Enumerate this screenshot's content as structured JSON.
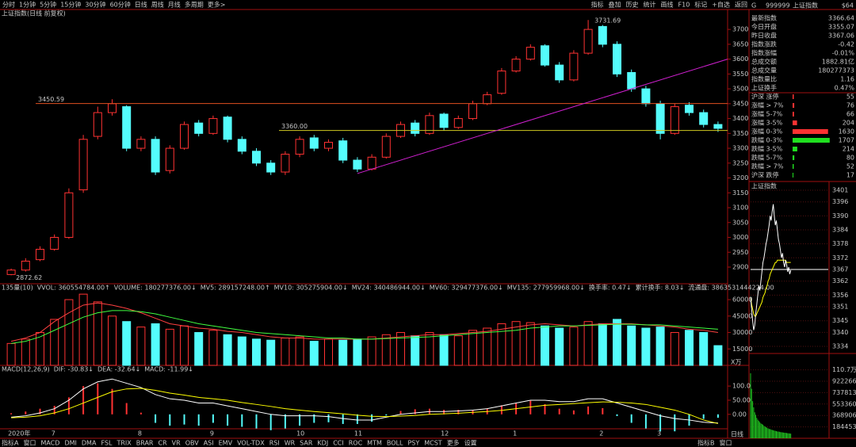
{
  "toolbar": {
    "periods": [
      "分时",
      "1分钟",
      "5分钟",
      "15分钟",
      "30分钟",
      "60分钟",
      "日线",
      "周线",
      "月线",
      "多周期",
      "更多>"
    ],
    "active": 6,
    "tools": [
      "指标",
      "叠加",
      "历史",
      "统计",
      "画线",
      "F10",
      "标记",
      "+自选",
      "返回"
    ]
  },
  "chart_data": [
    {
      "type": "candlestick",
      "title": "上证指数(日线 前复权)",
      "categories": [
        "2020年",
        null,
        null,
        "7",
        null,
        null,
        null,
        null,
        null,
        "8",
        null,
        null,
        null,
        null,
        "9",
        null,
        null,
        null,
        null,
        null,
        "10",
        null,
        null,
        null,
        "11",
        null,
        null,
        null,
        null,
        null,
        "12",
        null,
        null,
        null,
        null,
        "1",
        null,
        null,
        null,
        null,
        null,
        "2",
        null,
        null,
        null,
        "3",
        null,
        null,
        null,
        null
      ],
      "open": [
        2875,
        2890,
        2925,
        2960,
        3000,
        3160,
        3340,
        3420,
        3440,
        3300,
        3330,
        3225,
        3300,
        3385,
        3350,
        3405,
        3330,
        3290,
        3250,
        3220,
        3280,
        3335,
        3300,
        3325,
        3260,
        3230,
        3270,
        3340,
        3385,
        3350,
        3415,
        3370,
        3400,
        3450,
        3485,
        3560,
        3600,
        3645,
        3580,
        3530,
        3620,
        3710,
        3650,
        3555,
        3500,
        3450,
        3350,
        3445,
        3420,
        3380
      ],
      "high": [
        2895,
        2930,
        2970,
        3010,
        3165,
        3345,
        3440,
        3465,
        3445,
        3340,
        3340,
        3310,
        3390,
        3395,
        3410,
        3410,
        3340,
        3300,
        3260,
        3290,
        3340,
        3345,
        3330,
        3335,
        3270,
        3280,
        3350,
        3390,
        3395,
        3420,
        3420,
        3410,
        3460,
        3490,
        3570,
        3610,
        3650,
        3650,
        3590,
        3630,
        3731.69,
        3715,
        3660,
        3565,
        3510,
        3460,
        3450,
        3455,
        3430,
        3390
      ],
      "low": [
        2872.62,
        2885,
        2920,
        2955,
        2995,
        3150,
        3330,
        3410,
        3290,
        3290,
        3210,
        3215,
        3295,
        3340,
        3345,
        3320,
        3280,
        3240,
        3210,
        3210,
        3270,
        3290,
        3290,
        3250,
        3220,
        3225,
        3265,
        3335,
        3340,
        3345,
        3360,
        3365,
        3395,
        3445,
        3480,
        3555,
        3595,
        3575,
        3520,
        3525,
        3615,
        3640,
        3540,
        3490,
        3440,
        3330,
        3345,
        3410,
        3370,
        3355
      ],
      "close": [
        2890,
        2920,
        2960,
        3000,
        3150,
        3330,
        3420,
        3450,
        3300,
        3330,
        3220,
        3300,
        3380,
        3350,
        3400,
        3330,
        3290,
        3250,
        3220,
        3280,
        3330,
        3300,
        3320,
        3260,
        3230,
        3270,
        3340,
        3380,
        3350,
        3410,
        3370,
        3400,
        3450,
        3480,
        3560,
        3600,
        3640,
        3580,
        3530,
        3620,
        3700,
        3650,
        3550,
        3500,
        3450,
        3350,
        3440,
        3420,
        3380,
        3367
      ],
      "up_color": "#ff3232",
      "down_color": "#54fcfc",
      "ylim": [
        2844,
        3767
      ],
      "yticks": [
        2900,
        2950,
        3000,
        3050,
        3100,
        3150,
        3200,
        3250,
        3300,
        3350,
        3400,
        3450,
        3500,
        3550,
        3600,
        3650,
        3700
      ],
      "lines": [
        {
          "value": 3450.59,
          "color": "#e05020"
        },
        {
          "value": {
            "value": 3360,
            "label": "3360.00"
          },
          "color": "#d0c820"
        }
      ],
      "trend_line": {
        "values": [
          3215,
          3600
        ],
        "color": "#d020d0"
      },
      "period_label": "日线"
    },
    {
      "type": "bar",
      "legend": [
        {
          "text": "135量(10)",
          "color": "#c8c8c8"
        },
        {
          "text": "VVOL: 360554784.00↑",
          "color": "#ffffff"
        },
        {
          "text": "VOLUME: 180277376.00↓",
          "color": "#ffff00"
        },
        {
          "text": "MV5: 289157248.00↑",
          "color": "#ff4040"
        },
        {
          "text": "MV10: 305275904.00↓",
          "color": "#ffffff"
        },
        {
          "text": "MV24: 340486944.00↓",
          "color": "#40ff40"
        },
        {
          "text": "MV60: 329477376.00↓",
          "color": "#4060ff"
        },
        {
          "text": "MV135: 277959968.00↓",
          "color": "#ffffff"
        },
        {
          "text": "换手率: 0.47↓",
          "color": "#ffffff"
        },
        {
          "text": "累计换手: 8.03↓",
          "color": "#ffff00"
        },
        {
          "text": "流通盘: 3863531444224.00",
          "color": "#ff40ff"
        }
      ],
      "values": [
        20000,
        24000,
        30000,
        42000,
        60000,
        65000,
        58000,
        45000,
        40000,
        35000,
        38000,
        33000,
        36000,
        30000,
        32000,
        28000,
        26000,
        24000,
        23000,
        25000,
        26000,
        22000,
        24000,
        23000,
        24000,
        26000,
        28000,
        30000,
        27000,
        30000,
        28000,
        27000,
        32000,
        34000,
        38000,
        40000,
        39000,
        36000,
        34000,
        35000,
        40000,
        38000,
        42000,
        36000,
        34000,
        35000,
        30000,
        32000,
        30000,
        18028
      ],
      "series": [
        {
          "color": "#ff4040",
          "values": [
            22000,
            25000,
            30000,
            40000,
            48000,
            55000,
            57000,
            55000,
            52000,
            48000,
            43000,
            38000,
            36000,
            34000,
            33000,
            31000,
            30000,
            28000,
            26000,
            25000,
            25000,
            24000,
            24000,
            24000,
            24000,
            24000,
            25000,
            26000,
            27000,
            28000,
            28000,
            29000,
            30000,
            31000,
            33000,
            35000,
            37000,
            38000,
            37000,
            36000,
            37000,
            38000,
            38000,
            38000,
            37000,
            36000,
            35000,
            33000,
            32000,
            30000
          ]
        },
        {
          "color": "#40ff40",
          "values": [
            20000,
            22000,
            26000,
            32000,
            38000,
            44000,
            48000,
            50000,
            50000,
            49000,
            47000,
            44000,
            41000,
            38000,
            36000,
            34000,
            32000,
            30000,
            29000,
            28000,
            27000,
            26000,
            25000,
            25000,
            24000,
            24000,
            24500,
            25000,
            25500,
            26000,
            27000,
            28000,
            29000,
            30000,
            31000,
            32000,
            34000,
            35000,
            36000,
            36000,
            36500,
            37000,
            37500,
            37500,
            37000,
            37000,
            36000,
            35000,
            34000,
            33000
          ]
        }
      ],
      "ylim": [
        0,
        68000
      ],
      "yticks": [
        15000,
        30000,
        45000,
        60000
      ],
      "unit": "X万"
    },
    {
      "type": "macd",
      "legend": [
        {
          "text": "MACD(12,26,9)",
          "color": "#c8c8c8"
        },
        {
          "text": "DIF: -30.83↓",
          "color": "#ffffff"
        },
        {
          "text": "DEA: -32.64↓",
          "color": "#ffff00"
        },
        {
          "text": "MACD: -11.99↓",
          "color": "#ff40ff"
        }
      ],
      "values": [
        4,
        10,
        20,
        30,
        60,
        100,
        110,
        90,
        40,
        6,
        -30,
        -40,
        -36,
        -40,
        -30,
        -40,
        -44,
        -50,
        -56,
        -50,
        -40,
        -30,
        -28,
        -34,
        -34,
        -26,
        -4,
        12,
        18,
        20,
        16,
        16,
        16,
        20,
        32,
        40,
        48,
        36,
        20,
        14,
        28,
        22,
        -6,
        -30,
        -50,
        -60,
        -60,
        -40,
        -16,
        -11.99
      ],
      "series": [
        {
          "color": "#ffffff",
          "values": [
            -10,
            -5,
            5,
            20,
            50,
            90,
            115,
            125,
            110,
            95,
            70,
            55,
            50,
            40,
            40,
            30,
            20,
            10,
            0,
            -5,
            -5,
            -5,
            -8,
            -15,
            -20,
            -20,
            -10,
            0,
            5,
            10,
            10,
            12,
            15,
            20,
            30,
            40,
            50,
            50,
            45,
            45,
            55,
            55,
            40,
            25,
            10,
            -5,
            -15,
            -20,
            -28,
            -30.83
          ]
        },
        {
          "color": "#ffff00",
          "values": [
            -12,
            -10,
            -5,
            5,
            20,
            40,
            60,
            80,
            90,
            92,
            85,
            75,
            68,
            60,
            55,
            50,
            42,
            35,
            28,
            20,
            15,
            10,
            6,
            2,
            -3,
            -7,
            -8,
            -6,
            -4,
            0,
            2,
            4,
            7,
            10,
            14,
            20,
            26,
            32,
            35,
            38,
            41,
            44,
            43,
            40,
            35,
            25,
            15,
            0,
            -20,
            -32.64
          ]
        }
      ],
      "up_color": "#ff3232",
      "down_color": "#54fcfc",
      "ylim": [
        -51,
        148
      ],
      "yticks": [
        {
          "value": 0,
          "label": "0.00"
        },
        {
          "value": 50,
          "label": "50.00"
        },
        {
          "value": 100,
          "label": "100.0"
        }
      ]
    }
  ],
  "tabs": [
    "指标A",
    "窗口",
    "MACD",
    "DMI",
    "DMA",
    "FSL",
    "TRIX",
    "BRAR",
    "CR",
    "VR",
    "OBV",
    "ASI",
    "EMV",
    "VOL-TDX",
    "RSI",
    "WR",
    "SAR",
    "KDJ",
    "CCI",
    "ROC",
    "MTM",
    "BOLL",
    "PSY",
    "MCST",
    "更多",
    "设置"
  ],
  "tabs_b": [
    "指标B",
    "窗口"
  ],
  "quote_panel": {
    "mark": "G",
    "code": "999999",
    "name": "上证指数",
    "tag": "$64",
    "rows": [
      {
        "label": "最新指数",
        "value": 3366.64,
        "color": "#ff3232"
      },
      {
        "label": "今日开盘",
        "value": 3355.07,
        "color": "#ff3232"
      },
      {
        "label": "昨日收盘",
        "value": 3367.06,
        "color": "#ffffff"
      },
      {
        "label": "指数涨跌",
        "value": -0.42,
        "color": "#40ff40"
      },
      {
        "label": "指数涨幅",
        "value": "-0.01%",
        "color": "#40ff40"
      },
      {
        "label": "总成交额",
        "value": "1882.81亿",
        "color": "#ffff00"
      },
      {
        "label": "总成交量",
        "value": 180277373,
        "color": "#ffff00"
      },
      {
        "label": "指数量比",
        "value": 1.16,
        "color": "#ff3232"
      },
      {
        "label": "上证换手",
        "value": "0.47%",
        "color": "#ffffff"
      }
    ],
    "breadth": {
      "xlim": [
        0,
        1750
      ],
      "rows": [
        {
          "label": "沪深 涨停",
          "value": 55,
          "color": "#ff3232"
        },
        {
          "label": "涨幅 > 7%",
          "value": 76,
          "color": "#ff3232"
        },
        {
          "label": "涨幅 5-7%",
          "value": 66,
          "color": "#ff3232"
        },
        {
          "label": "涨幅 3-5%",
          "value": 204,
          "color": "#ff3232"
        },
        {
          "label": "涨幅 0-3%",
          "value": 1630,
          "color": "#ff3232"
        },
        {
          "label": "跌幅 0-3%",
          "value": 1707,
          "color": "#20e020"
        },
        {
          "label": "跌幅 3-5%",
          "value": 214,
          "color": "#20e020"
        },
        {
          "label": "跌幅 5-7%",
          "value": 80,
          "color": "#20e020"
        },
        {
          "label": "跌幅 > 7%",
          "value": 52,
          "color": "#20e020"
        },
        {
          "label": "沪深 跌停",
          "value": 17,
          "color": "#20e020"
        }
      ]
    },
    "intraday": {
      "title": "上证指数",
      "price": [
        3355,
        3350,
        3345,
        3341,
        3343,
        3348,
        3352,
        3356,
        3360,
        3358,
        3362,
        3366,
        3370,
        3372,
        3375,
        3378,
        3380,
        3383,
        3386,
        3390,
        3388,
        3392,
        3395,
        3390,
        3386,
        3388,
        3384,
        3380,
        3378,
        3375,
        3372,
        3374,
        3370,
        3368,
        3371,
        3369,
        3366,
        3368,
        3365,
        3366.64
      ],
      "avg": [
        3355,
        3352,
        3350,
        3348,
        3347,
        3347,
        3348,
        3349,
        3350,
        3351,
        3352,
        3353,
        3355,
        3356,
        3357,
        3359,
        3360,
        3362,
        3363,
        3365,
        3366,
        3367,
        3368,
        3369,
        3370,
        3370,
        3371,
        3371,
        3371,
        3371,
        3371,
        3371,
        3371,
        3371,
        3371,
        3370,
        3370,
        3370,
        3370,
        3370
      ],
      "volume": [
        1050000,
        800000,
        600000,
        500000,
        420000,
        380000,
        330000,
        300000,
        280000,
        260000,
        240000,
        230000,
        220000,
        200000,
        190000,
        180000,
        170000,
        160000,
        150000,
        150000,
        140000,
        135000,
        130000,
        125000,
        120000,
        115000,
        110000,
        108000,
        105000,
        100000,
        98000,
        95000,
        92000,
        90000,
        88000,
        85000,
        82000,
        80000,
        78000,
        75000
      ],
      "price_color": "#ffffff",
      "avg_color": "#ffff00",
      "volume_color": "#20c020",
      "ylim": [
        3333,
        3401
      ],
      "yticks": [
        3401,
        3396,
        3390,
        3384,
        3378,
        3372,
        3367,
        3362,
        3356,
        3351,
        3345,
        3340,
        3334
      ],
      "vol_ylim": [
        0,
        1294000
      ],
      "vol_yticks": [
        {
          "value": 1107000,
          "label": "110.7万"
        },
        922266,
        737813,
        553360,
        368906,
        184453
      ]
    }
  }
}
